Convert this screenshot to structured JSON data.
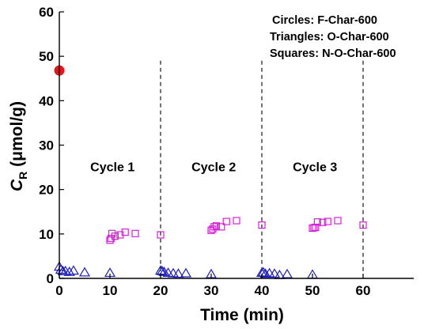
{
  "chart_data": {
    "type": "scatter",
    "xlabel": "Time (min)",
    "ylabel": {
      "main": "C",
      "sub": "R",
      "unit": " (μmol/g)"
    },
    "xlim": [
      0,
      70
    ],
    "ylim": [
      0,
      60
    ],
    "xticks": [
      0,
      10,
      20,
      30,
      40,
      50,
      60
    ],
    "yticks": [
      0,
      10,
      20,
      30,
      40,
      50,
      60
    ],
    "grid": false,
    "legend_notes": [
      "Circles: F-Char-600",
      "Triangles: O-Char-600",
      "Squares: N-O-Char-600"
    ],
    "cycle_labels": [
      {
        "text": "Cycle 1",
        "x": 10.5,
        "y": 25
      },
      {
        "text": "Cycle 2",
        "x": 30.5,
        "y": 25
      },
      {
        "text": "Cycle 3",
        "x": 50.5,
        "y": 25
      }
    ],
    "cycle_boundaries": [
      20,
      40,
      60
    ],
    "boundary_top": 49,
    "series": [
      {
        "marker": "circle",
        "color": "#e8141b",
        "points": [
          [
            0,
            46.8
          ]
        ]
      },
      {
        "marker": "triangle",
        "color": "#1f1fbf",
        "points": [
          [
            0,
            2.6
          ],
          [
            0.3,
            1.9
          ],
          [
            0.7,
            1.6
          ],
          [
            1.2,
            1.6
          ],
          [
            2,
            1.4
          ],
          [
            2.8,
            1.7
          ],
          [
            5,
            1.3
          ],
          [
            10,
            1.2
          ],
          [
            20,
            1.7
          ],
          [
            20.3,
            1.6
          ],
          [
            20.7,
            1.4
          ],
          [
            21.5,
            1.2
          ],
          [
            22.5,
            1.1
          ],
          [
            23.5,
            1.0
          ],
          [
            25,
            1.1
          ],
          [
            30,
            0.9
          ],
          [
            40,
            1.2
          ],
          [
            40.3,
            1.3
          ],
          [
            40.7,
            1.0
          ],
          [
            41.5,
            1.1
          ],
          [
            42.5,
            1.0
          ],
          [
            43.5,
            0.7
          ],
          [
            45,
            0.9
          ],
          [
            50,
            0.8
          ]
        ]
      },
      {
        "marker": "square",
        "color": "#d81fd8",
        "points": [
          [
            10,
            8.6
          ],
          [
            10.2,
            9.0
          ],
          [
            10.4,
            10.1
          ],
          [
            11,
            9.5
          ],
          [
            12,
            9.8
          ],
          [
            13,
            10.4
          ],
          [
            15,
            10.1
          ],
          [
            20,
            9.8
          ],
          [
            30,
            10.8
          ],
          [
            30.3,
            11.1
          ],
          [
            30.6,
            11.6
          ],
          [
            31,
            11.8
          ],
          [
            32,
            11.6
          ],
          [
            33,
            12.8
          ],
          [
            35,
            13.0
          ],
          [
            40,
            12.0
          ],
          [
            50,
            11.3
          ],
          [
            50.3,
            11.4
          ],
          [
            50.6,
            11.5
          ],
          [
            51,
            12.7
          ],
          [
            52,
            12.6
          ],
          [
            53,
            12.8
          ],
          [
            55,
            13.0
          ],
          [
            60,
            12.0
          ]
        ]
      }
    ]
  }
}
